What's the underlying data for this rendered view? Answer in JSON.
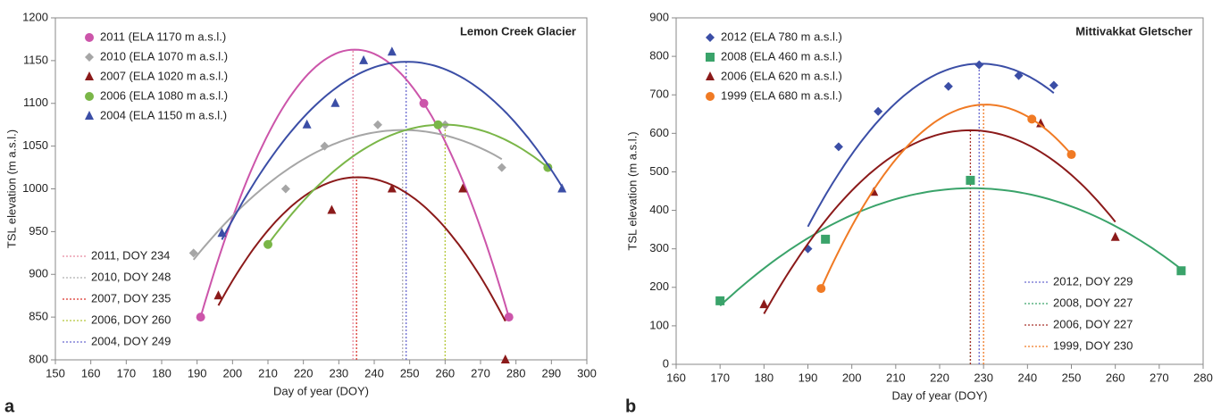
{
  "chart_data": [
    {
      "type": "scatter",
      "panel": "a",
      "title": "Lemon Creek Glacier",
      "xlabel": "Day of year (DOY)",
      "ylabel": "TSL elevation (m a.s.l.)",
      "xlim": [
        150,
        300
      ],
      "xticks": [
        150,
        160,
        170,
        180,
        190,
        200,
        210,
        220,
        230,
        240,
        250,
        260,
        270,
        280,
        290,
        300
      ],
      "ylim": [
        800,
        1200
      ],
      "yticks": [
        800,
        850,
        900,
        950,
        1000,
        1050,
        1100,
        1150,
        1200
      ],
      "legend": "upper left",
      "line_legend": "lower left",
      "fit": "quadratic",
      "series": [
        {
          "name": "2011 (ELA 1170 m a.s.l.)",
          "color": "#cc55aa",
          "marker": "circle",
          "x": [
            191,
            254,
            278
          ],
          "values": [
            850,
            1100,
            850
          ]
        },
        {
          "name": "2010 (ELA 1070 m a.s.l.)",
          "color": "#a6a6a6",
          "marker": "diamond",
          "x": [
            189,
            215,
            226,
            241,
            260,
            276
          ],
          "values": [
            925,
            1000,
            1050,
            1075,
            1075,
            1025
          ]
        },
        {
          "name": "2007 (ELA 1020 m a.s.l.)",
          "color": "#8b1a1a",
          "marker": "triangle",
          "x": [
            196,
            228,
            245,
            265,
            277
          ],
          "values": [
            875,
            975,
            1000,
            1000,
            800
          ]
        },
        {
          "name": "2006 (ELA 1080 m a.s.l.)",
          "color": "#7ab648",
          "marker": "circle",
          "x": [
            210,
            258,
            289
          ],
          "values": [
            935,
            1075,
            1025
          ]
        },
        {
          "name": "2004 (ELA 1150 m a.s.l.)",
          "color": "#3b4ea6",
          "marker": "triangle",
          "x": [
            197,
            221,
            229,
            237,
            245,
            293
          ],
          "values": [
            948,
            1075,
            1100,
            1150,
            1160,
            1000
          ]
        }
      ],
      "peaks": [
        {
          "label": "2011, DOY 234",
          "x": 234,
          "color": "#e88aa0"
        },
        {
          "label": "2010, DOY 248",
          "x": 248,
          "color": "#b0b0b0"
        },
        {
          "label": "2007, DOY 235",
          "x": 235,
          "color": "#d9332b"
        },
        {
          "label": "2006, DOY 260",
          "x": 260,
          "color": "#b5c83a"
        },
        {
          "label": "2004, DOY 249",
          "x": 249,
          "color": "#6a6ad0"
        }
      ]
    },
    {
      "type": "scatter",
      "panel": "b",
      "title": "Mittivakkat Gletscher",
      "xlabel": "Day of year (DOY)",
      "ylabel": "TSL elevation (m a.s.l.)",
      "xlim": [
        160,
        280
      ],
      "xticks": [
        160,
        170,
        180,
        190,
        200,
        210,
        220,
        230,
        240,
        250,
        260,
        270,
        280
      ],
      "ylim": [
        0,
        900
      ],
      "yticks": [
        0,
        100,
        200,
        300,
        400,
        500,
        600,
        700,
        800,
        900
      ],
      "legend": "upper left",
      "line_legend": "lower right",
      "fit": "quadratic",
      "series": [
        {
          "name": "2012 (ELA 780 m a.s.l.)",
          "color": "#3b4ea6",
          "marker": "diamond",
          "x": [
            190,
            197,
            206,
            222,
            229,
            238,
            246
          ],
          "values": [
            300,
            565,
            657,
            722,
            778,
            750,
            725
          ]
        },
        {
          "name": "2008 (ELA 460 m a.s.l.)",
          "color": "#3aa36a",
          "marker": "square",
          "x": [
            170,
            194,
            227,
            275
          ],
          "values": [
            165,
            325,
            478,
            243
          ]
        },
        {
          "name": "2006 (ELA 620 m a.s.l.)",
          "color": "#8b1a1a",
          "marker": "triangle",
          "x": [
            180,
            205,
            243,
            260
          ],
          "values": [
            155,
            447,
            625,
            330
          ]
        },
        {
          "name": "1999 (ELA 680 m a.s.l.)",
          "color": "#f07a24",
          "marker": "circle",
          "x": [
            193,
            241,
            250
          ],
          "values": [
            197,
            637,
            545
          ]
        }
      ],
      "peaks": [
        {
          "label": "2012, DOY 229",
          "x": 229,
          "color": "#6a6ad0"
        },
        {
          "label": "2008, DOY 227",
          "x": 227,
          "color": "#3aa36a"
        },
        {
          "label": "2006, DOY 227",
          "x": 227,
          "color": "#a8322b"
        },
        {
          "label": "1999, DOY 230",
          "x": 230,
          "color": "#f07a24"
        }
      ]
    }
  ]
}
